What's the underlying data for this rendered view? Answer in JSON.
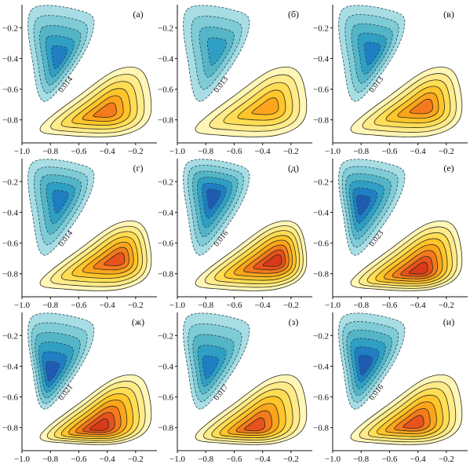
{
  "chart_data": [
    {
      "type": "contour",
      "panel_label": "(а)",
      "contour_label": "0.014",
      "x_ticks": [
        "−1.0",
        "−0.8",
        "−0.6",
        "−0.4",
        "−0.2"
      ],
      "y_ticks": [
        "−0.2",
        "−0.4",
        "−0.6",
        "−0.8"
      ],
      "xlim": [
        -1.0,
        -0.05
      ],
      "ylim": [
        -0.95,
        -0.05
      ],
      "neg_center": [
        -0.74,
        -0.4
      ],
      "pos_center": [
        -0.4,
        -0.75
      ],
      "neg_levels": 5,
      "pos_levels": 6
    },
    {
      "type": "contour",
      "panel_label": "(б)",
      "contour_label": "0.013",
      "x_ticks": [
        "−1.0",
        "−0.8",
        "−0.6",
        "−0.4",
        "−0.2"
      ],
      "y_ticks": [
        "−0.2",
        "−0.4",
        "−0.6",
        "−0.8"
      ],
      "xlim": [
        -1.0,
        -0.05
      ],
      "ylim": [
        -0.95,
        -0.05
      ],
      "neg_center": [
        -0.72,
        -0.35
      ],
      "pos_center": [
        -0.35,
        -0.72
      ],
      "neg_levels": 4,
      "pos_levels": 5
    },
    {
      "type": "contour",
      "panel_label": "(в)",
      "contour_label": "0.013",
      "x_ticks": [
        "−1.0",
        "−0.8",
        "−0.6",
        "−0.4",
        "−0.2"
      ],
      "y_ticks": [
        "−0.2",
        "−0.4",
        "−0.6",
        "−0.8"
      ],
      "xlim": [
        -1.0,
        -0.05
      ],
      "ylim": [
        -0.95,
        -0.05
      ],
      "neg_center": [
        -0.72,
        -0.37
      ],
      "pos_center": [
        -0.35,
        -0.72
      ],
      "neg_levels": 5,
      "pos_levels": 6
    },
    {
      "type": "contour",
      "panel_label": "(г)",
      "contour_label": "0.014",
      "x_ticks": [
        "−1.0",
        "−0.8",
        "−0.6",
        "−0.4",
        "−0.2"
      ],
      "y_ticks": [
        "−0.2",
        "−0.4",
        "−0.6",
        "−0.8"
      ],
      "xlim": [
        -1.0,
        -0.05
      ],
      "ylim": [
        -0.95,
        -0.05
      ],
      "neg_center": [
        -0.73,
        -0.32
      ],
      "pos_center": [
        -0.32,
        -0.71
      ],
      "neg_levels": 5,
      "pos_levels": 7
    },
    {
      "type": "contour",
      "panel_label": "(д)",
      "contour_label": "0.016",
      "x_ticks": [
        "−1.0",
        "−0.8",
        "−0.6",
        "−0.4",
        "−0.2"
      ],
      "y_ticks": [
        "−0.2",
        "−0.4",
        "−0.6",
        "−0.8"
      ],
      "xlim": [
        -1.0,
        -0.05
      ],
      "ylim": [
        -0.95,
        -0.05
      ],
      "neg_center": [
        -0.75,
        -0.3
      ],
      "pos_center": [
        -0.3,
        -0.72
      ],
      "neg_levels": 6,
      "pos_levels": 8
    },
    {
      "type": "contour",
      "panel_label": "(е)",
      "contour_label": "0.023",
      "x_ticks": [
        "−1.0",
        "−0.8",
        "−0.6",
        "−0.4",
        "−0.2"
      ],
      "y_ticks": [
        "−0.2",
        "−0.4",
        "−0.6",
        "−0.8"
      ],
      "xlim": [
        -1.0,
        -0.05
      ],
      "ylim": [
        -0.95,
        -0.05
      ],
      "neg_center": [
        -0.8,
        -0.35
      ],
      "pos_center": [
        -0.38,
        -0.78
      ],
      "neg_levels": 6,
      "pos_levels": 8
    },
    {
      "type": "contour",
      "panel_label": "(ж)",
      "contour_label": "0.021",
      "x_ticks": [
        "−1.0",
        "−0.8",
        "−0.6",
        "−0.4",
        "−0.2"
      ],
      "y_ticks": [
        "−0.2",
        "−0.4",
        "−0.6",
        "−0.8"
      ],
      "xlim": [
        -1.0,
        -0.05
      ],
      "ylim": [
        -0.95,
        -0.05
      ],
      "neg_center": [
        -0.8,
        -0.45
      ],
      "pos_center": [
        -0.45,
        -0.8
      ],
      "neg_levels": 6,
      "pos_levels": 8
    },
    {
      "type": "contour",
      "panel_label": "(з)",
      "contour_label": "0.017",
      "x_ticks": [
        "−1.0",
        "−0.8",
        "−0.6",
        "−0.4",
        "−0.2"
      ],
      "y_ticks": [
        "−0.2",
        "−0.4",
        "−0.6",
        "−0.8"
      ],
      "xlim": [
        -1.0,
        -0.05
      ],
      "ylim": [
        -0.95,
        -0.05
      ],
      "neg_center": [
        -0.78,
        -0.42
      ],
      "pos_center": [
        -0.45,
        -0.8
      ],
      "neg_levels": 5,
      "pos_levels": 7
    },
    {
      "type": "contour",
      "panel_label": "(и)",
      "contour_label": "0.016",
      "x_ticks": [
        "−1.0",
        "−0.8",
        "−0.6",
        "−0.4",
        "−0.2"
      ],
      "y_ticks": [
        "−0.2",
        "−0.4",
        "−0.6",
        "−0.8"
      ],
      "xlim": [
        -1.0,
        -0.05
      ],
      "ylim": [
        -0.95,
        -0.05
      ],
      "neg_center": [
        -0.78,
        -0.4
      ],
      "pos_center": [
        -0.42,
        -0.78
      ],
      "neg_levels": 6,
      "pos_levels": 7
    }
  ],
  "colors": {
    "negative_fills": [
      "#a8dde4",
      "#7fcbd6",
      "#54b5c7",
      "#2f9fc4",
      "#1f7fc2",
      "#1f5bb0"
    ],
    "positive_fills": [
      "#fff6b8",
      "#ffeb8a",
      "#ffdd55",
      "#ffc52a",
      "#fca51c",
      "#f57a1c",
      "#e8521c",
      "#d93a1a"
    ],
    "axis": "#111111"
  }
}
